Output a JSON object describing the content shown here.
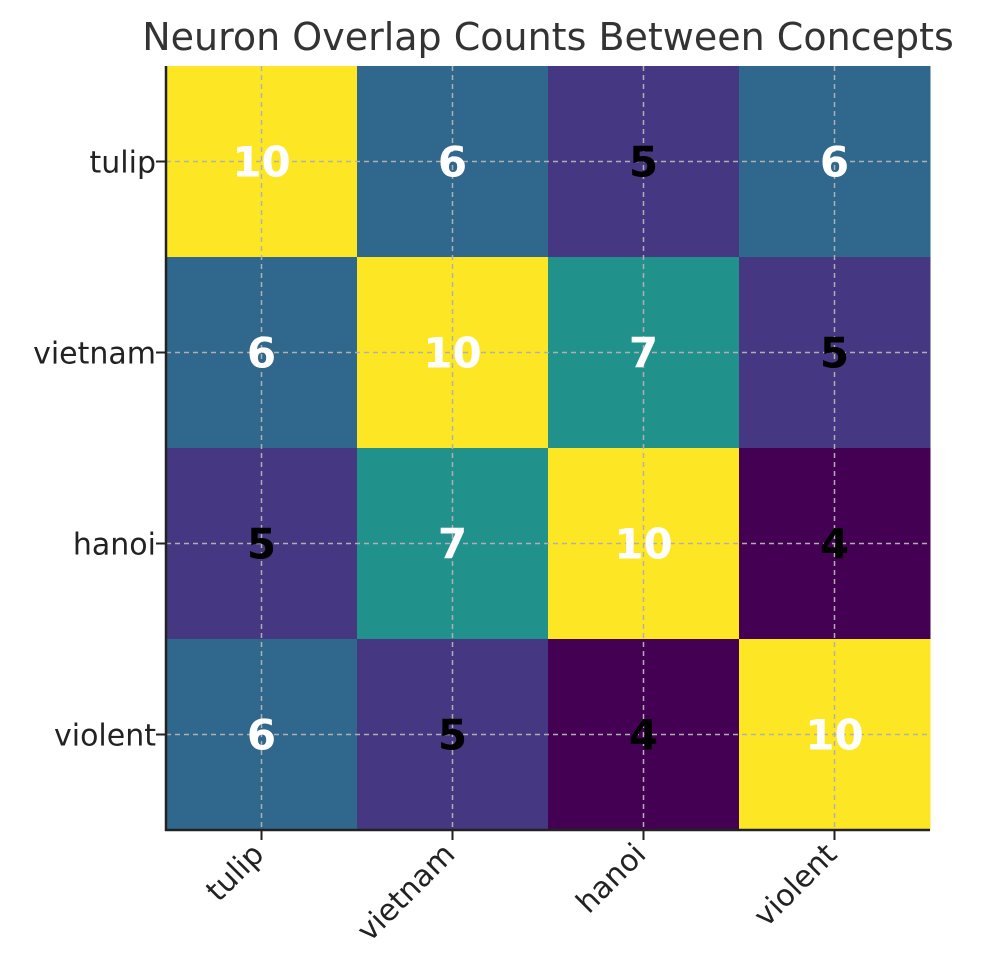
{
  "chart_data": {
    "type": "heatmap",
    "title": "Neuron Overlap Counts Between Concepts",
    "x_categories": [
      "tulip",
      "vietnam",
      "hanoi",
      "violent"
    ],
    "y_categories": [
      "tulip",
      "vietnam",
      "hanoi",
      "violent"
    ],
    "values": [
      [
        10,
        6,
        5,
        6
      ],
      [
        6,
        10,
        7,
        5
      ],
      [
        5,
        7,
        10,
        4
      ],
      [
        6,
        5,
        4,
        10
      ]
    ],
    "vmin": 4,
    "vmax": 10,
    "colormap": "viridis",
    "colors": {
      "4": "#440154",
      "5": "#453781",
      "6": "#30678d",
      "7": "#21918c",
      "10": "#fde725"
    },
    "label_colors": {
      "dark": "#000000",
      "light": "#ffffff"
    },
    "grid": true,
    "grid_style": "dashed",
    "xtick_rotation": "45"
  }
}
